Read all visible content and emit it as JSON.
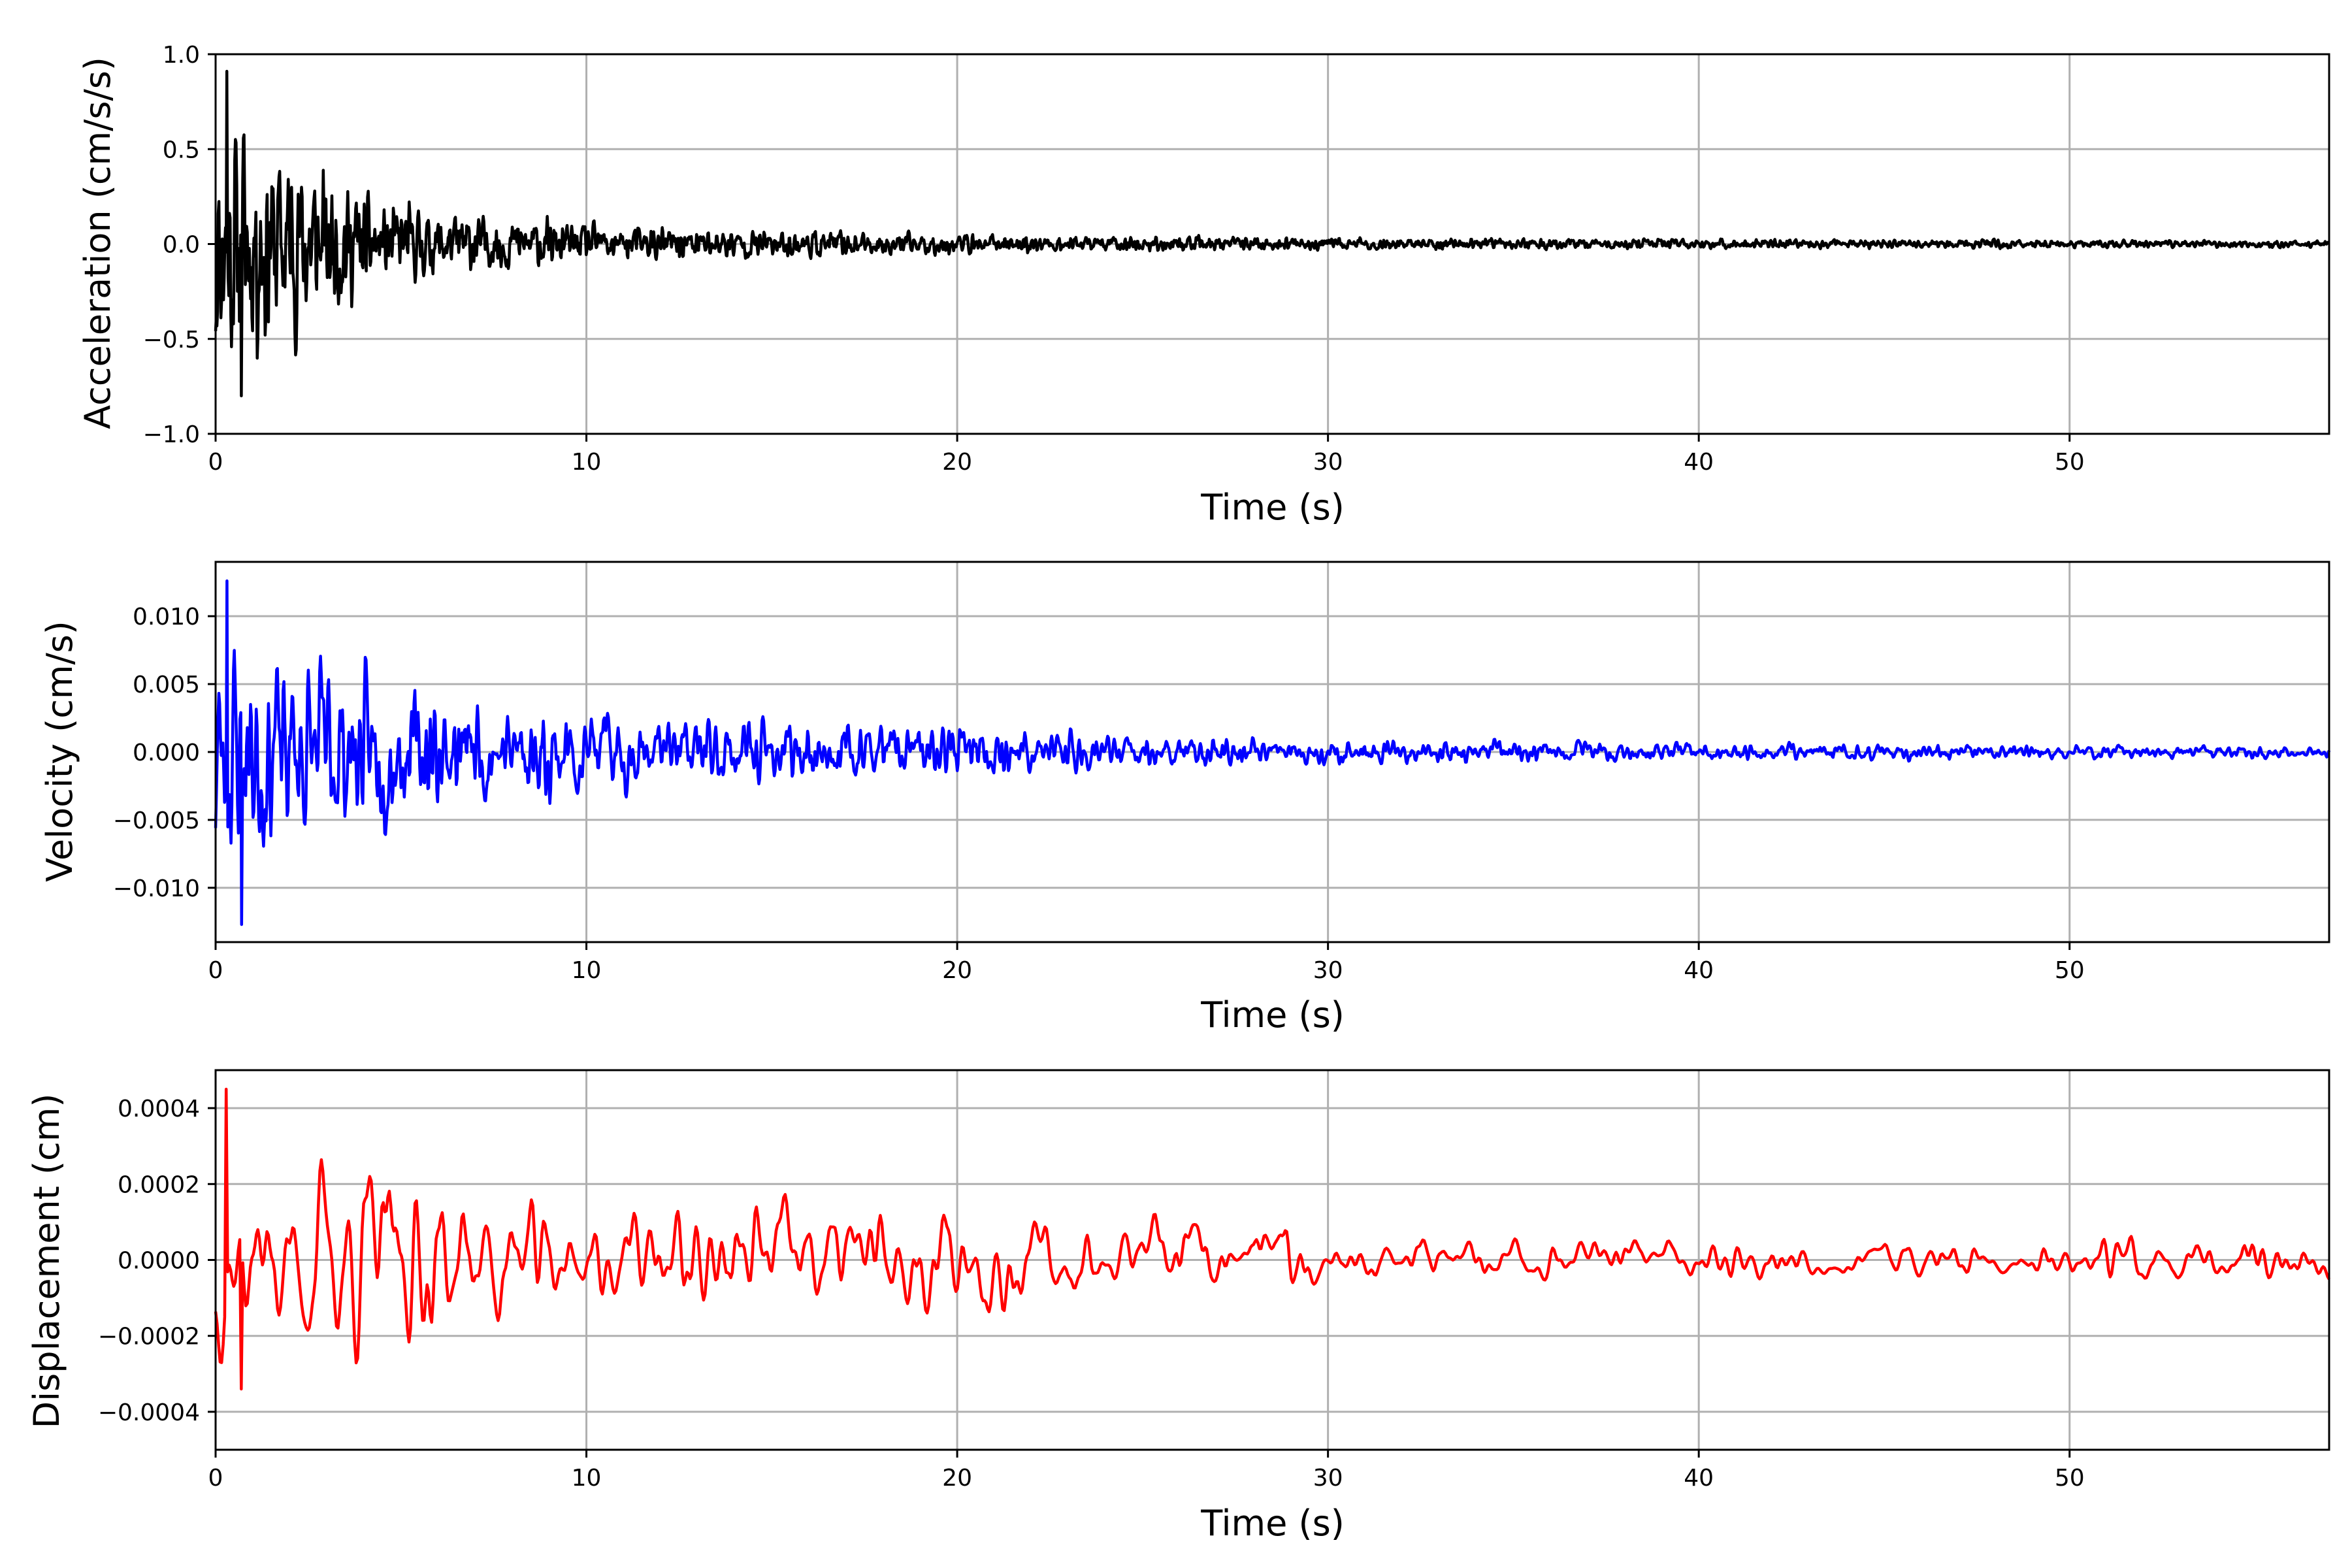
{
  "chart_data": [
    {
      "type": "line",
      "xlabel": "Time (s)",
      "ylabel": "Acceleration (cm/s/s)",
      "xlim": [
        0,
        57
      ],
      "ylim": [
        -1.0,
        1.0
      ],
      "xticks": [
        0,
        10,
        20,
        30,
        40,
        50
      ],
      "xtick_labels": [
        "0",
        "10",
        "20",
        "30",
        "40",
        "50"
      ],
      "yticks": [
        -1.0,
        -0.5,
        0.0,
        0.5,
        1.0
      ],
      "ytick_labels": [
        "−1.0",
        "−0.5",
        "0.0",
        "0.5",
        "1.0"
      ],
      "grid": true,
      "color": "#000000",
      "series": [
        {
          "envelope_t": [
            0,
            1,
            2,
            3,
            4,
            6,
            8,
            10,
            12,
            15,
            20,
            25,
            30,
            40,
            50,
            57
          ],
          "envelope_amp": [
            0.88,
            0.8,
            0.62,
            0.5,
            0.3,
            0.2,
            0.16,
            0.13,
            0.11,
            0.09,
            0.065,
            0.05,
            0.04,
            0.03,
            0.025,
            0.02
          ],
          "peak_max": 0.91,
          "peak_min": -0.8,
          "samples": 3200,
          "smoothing": 1,
          "seed": 11
        }
      ]
    },
    {
      "type": "line",
      "xlabel": "Time (s)",
      "ylabel": "Velocity (cm/s)",
      "xlim": [
        0,
        57
      ],
      "ylim": [
        -0.014,
        0.014
      ],
      "xticks": [
        0,
        10,
        20,
        30,
        40,
        50
      ],
      "xtick_labels": [
        "0",
        "10",
        "20",
        "30",
        "40",
        "50"
      ],
      "yticks": [
        -0.01,
        -0.005,
        0.0,
        0.005,
        0.01
      ],
      "ytick_labels": [
        "−0.010",
        "−0.005",
        "0.000",
        "0.005",
        "0.010"
      ],
      "grid": true,
      "color": "#0000ff",
      "series": [
        {
          "envelope_t": [
            0,
            1,
            2,
            3,
            4,
            6,
            8,
            10,
            12,
            15,
            20,
            23,
            25,
            30,
            40,
            50,
            57
          ],
          "envelope_amp": [
            0.012,
            0.011,
            0.0095,
            0.0085,
            0.007,
            0.0055,
            0.0045,
            0.004,
            0.0033,
            0.0028,
            0.0022,
            0.002,
            0.0014,
            0.0011,
            0.0008,
            0.0006,
            0.0005
          ],
          "peak_max": 0.0126,
          "peak_min": -0.0127,
          "samples": 2600,
          "smoothing": 2,
          "seed": 23
        }
      ]
    },
    {
      "type": "line",
      "xlabel": "Time (s)",
      "ylabel": "Displacement (cm)",
      "xlim": [
        0,
        57
      ],
      "ylim": [
        -0.0005,
        0.0005
      ],
      "xticks": [
        0,
        10,
        20,
        30,
        40,
        50
      ],
      "xtick_labels": [
        "0",
        "10",
        "20",
        "30",
        "40",
        "50"
      ],
      "yticks": [
        -0.0004,
        -0.0002,
        0.0,
        0.0002,
        0.0004
      ],
      "ytick_labels": [
        "−0.0004",
        "−0.0002",
        "0.0000",
        "0.0002",
        "0.0004"
      ],
      "grid": true,
      "color": "#ff0000",
      "series": [
        {
          "envelope_t": [
            0,
            2,
            3,
            6,
            10,
            14,
            17,
            21,
            23,
            29,
            30,
            40,
            50,
            51,
            57
          ],
          "envelope_amp": [
            0.0003,
            0.00025,
            0.00035,
            0.00028,
            0.00015,
            0.00022,
            0.00018,
            0.00016,
            0.00012,
            0.00012,
            7e-05,
            6e-05,
            6e-05,
            0.0001,
            6e-05
          ],
          "peak_max": 0.00045,
          "peak_min": -0.00034,
          "samples": 1400,
          "smoothing": 5,
          "seed": 37
        }
      ]
    }
  ]
}
